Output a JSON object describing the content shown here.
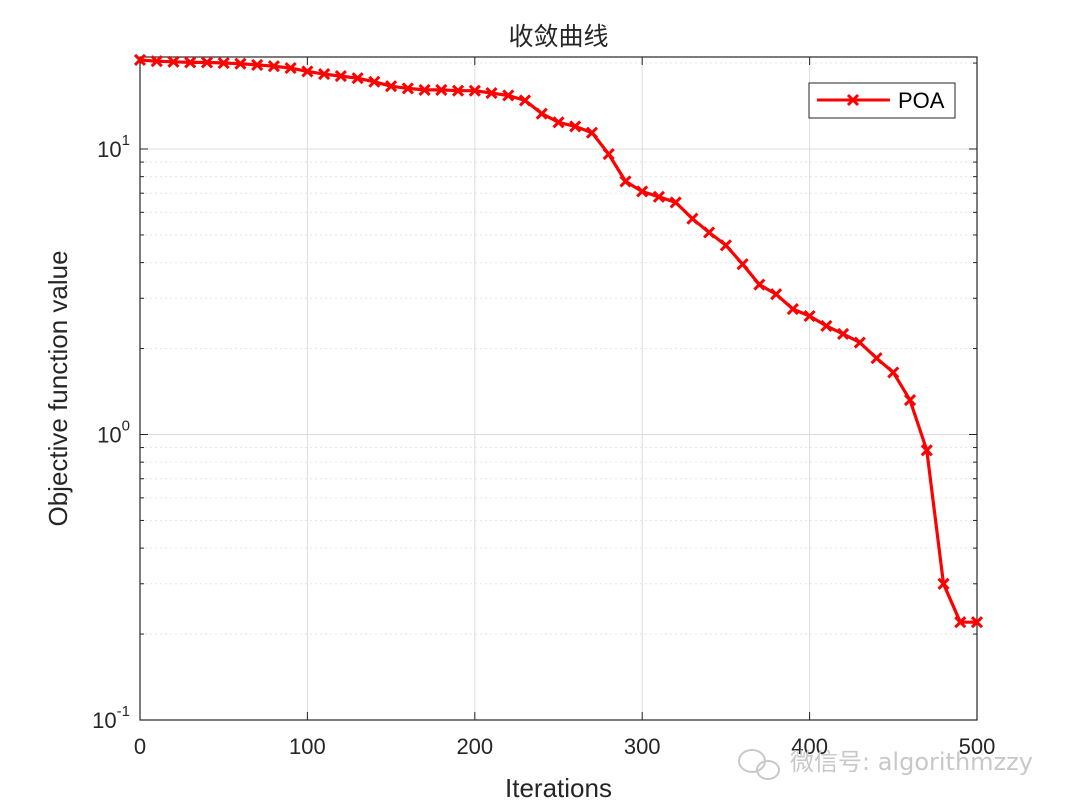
{
  "chart_data": {
    "type": "line",
    "title": "收敛曲线",
    "xlabel": "Iterations",
    "ylabel": "Objective function value",
    "xlim": [
      0,
      500
    ],
    "ylim": [
      0.1,
      21
    ],
    "yscale": "log",
    "grid": true,
    "legend_position": "top-right",
    "x_ticks": [
      "0",
      "100",
      "200",
      "300",
      "400",
      "500"
    ],
    "y_ticks": [
      {
        "base": "10",
        "exp": "-1",
        "value": 0.1
      },
      {
        "base": "10",
        "exp": "0",
        "value": 1
      },
      {
        "base": "10",
        "exp": "1",
        "value": 10
      }
    ],
    "series": [
      {
        "name": "POA",
        "color": "#ff0000",
        "marker": "x",
        "x": [
          0,
          10,
          20,
          30,
          40,
          50,
          60,
          70,
          80,
          90,
          100,
          110,
          120,
          130,
          140,
          150,
          160,
          170,
          180,
          190,
          200,
          210,
          220,
          230,
          240,
          250,
          260,
          270,
          280,
          290,
          300,
          310,
          320,
          330,
          340,
          350,
          360,
          370,
          380,
          390,
          400,
          410,
          420,
          430,
          440,
          450,
          460,
          470,
          480,
          490,
          500
        ],
        "y": [
          20.5,
          20.3,
          20.2,
          20.1,
          20.1,
          20.0,
          19.9,
          19.7,
          19.5,
          19.2,
          18.7,
          18.3,
          18.0,
          17.7,
          17.2,
          16.6,
          16.3,
          16.1,
          16.1,
          16.0,
          16.0,
          15.7,
          15.4,
          14.8,
          13.3,
          12.4,
          12.0,
          11.4,
          9.6,
          7.7,
          7.1,
          6.8,
          6.5,
          5.7,
          5.1,
          4.6,
          3.95,
          3.35,
          3.1,
          2.75,
          2.6,
          2.4,
          2.25,
          2.1,
          1.85,
          1.65,
          1.32,
          0.88,
          0.3,
          0.22,
          0.22
        ]
      }
    ]
  },
  "watermark": {
    "text": "微信号: algorithmzzy",
    "icon": "wechat-icon"
  }
}
